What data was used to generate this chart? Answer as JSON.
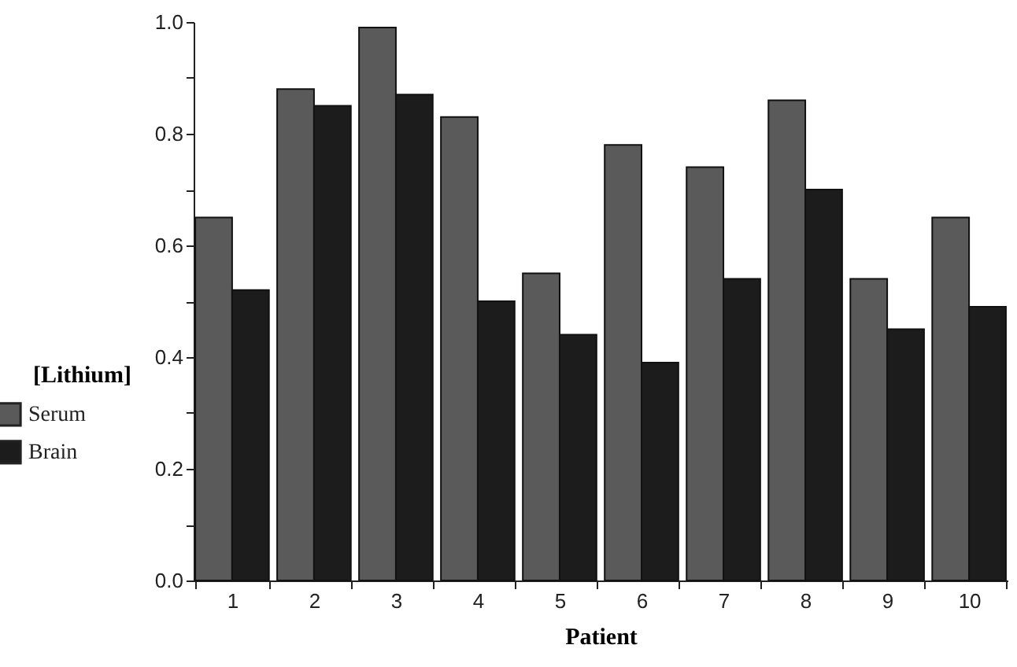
{
  "chart_data": {
    "type": "bar",
    "xlabel": "Patient",
    "ylabel": "[Lithium]",
    "categories": [
      "1",
      "2",
      "3",
      "4",
      "5",
      "6",
      "7",
      "8",
      "9",
      "10"
    ],
    "series": [
      {
        "name": "Serum",
        "color": "#5a5a5a",
        "values": [
          0.65,
          0.88,
          0.99,
          0.83,
          0.55,
          0.78,
          0.74,
          0.86,
          0.54,
          0.65
        ]
      },
      {
        "name": "Brain",
        "color": "#1c1c1c",
        "values": [
          0.52,
          0.85,
          0.87,
          0.5,
          0.44,
          0.39,
          0.54,
          0.7,
          0.45,
          0.49
        ]
      }
    ],
    "ylim": [
      0,
      1.0
    ],
    "yticks": [
      {
        "value": 0,
        "label": "0.0"
      },
      {
        "value": 0.1,
        "label": null
      },
      {
        "value": 0.2,
        "label": "0.2"
      },
      {
        "value": 0.3,
        "label": null
      },
      {
        "value": 0.4,
        "label": "0.4"
      },
      {
        "value": 0.5,
        "label": null
      },
      {
        "value": 0.6,
        "label": "0.6"
      },
      {
        "value": 0.7,
        "label": null
      },
      {
        "value": 0.8,
        "label": "0.8"
      },
      {
        "value": 0.9,
        "label": null
      },
      {
        "value": 1.0,
        "label": "1.0"
      }
    ],
    "grid": false,
    "legend": "left"
  }
}
